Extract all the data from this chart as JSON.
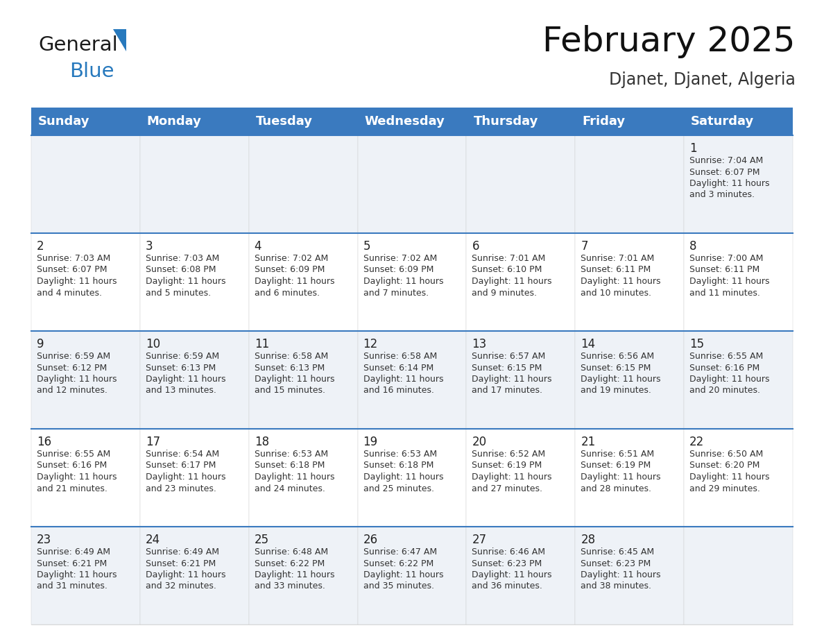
{
  "title": "February 2025",
  "subtitle": "Djanet, Djanet, Algeria",
  "header_color": "#3a7abf",
  "header_text_color": "#ffffff",
  "background_color": "#ffffff",
  "cell_bg_alt": "#eef2f7",
  "cell_bg_normal": "#ffffff",
  "row_divider_color": "#3a7abf",
  "cell_border_color": "#cccccc",
  "day_headers": [
    "Sunday",
    "Monday",
    "Tuesday",
    "Wednesday",
    "Thursday",
    "Friday",
    "Saturday"
  ],
  "title_fontsize": 36,
  "subtitle_fontsize": 17,
  "header_fontsize": 13,
  "day_num_fontsize": 12,
  "cell_fontsize": 9,
  "logo_color1": "#1a1a1a",
  "logo_color2": "#2779bd",
  "logo_triangle_color": "#2779bd",
  "weeks": [
    [
      {
        "day": null,
        "info": ""
      },
      {
        "day": null,
        "info": ""
      },
      {
        "day": null,
        "info": ""
      },
      {
        "day": null,
        "info": ""
      },
      {
        "day": null,
        "info": ""
      },
      {
        "day": null,
        "info": ""
      },
      {
        "day": 1,
        "info": "Sunrise: 7:04 AM\nSunset: 6:07 PM\nDaylight: 11 hours\nand 3 minutes."
      }
    ],
    [
      {
        "day": 2,
        "info": "Sunrise: 7:03 AM\nSunset: 6:07 PM\nDaylight: 11 hours\nand 4 minutes."
      },
      {
        "day": 3,
        "info": "Sunrise: 7:03 AM\nSunset: 6:08 PM\nDaylight: 11 hours\nand 5 minutes."
      },
      {
        "day": 4,
        "info": "Sunrise: 7:02 AM\nSunset: 6:09 PM\nDaylight: 11 hours\nand 6 minutes."
      },
      {
        "day": 5,
        "info": "Sunrise: 7:02 AM\nSunset: 6:09 PM\nDaylight: 11 hours\nand 7 minutes."
      },
      {
        "day": 6,
        "info": "Sunrise: 7:01 AM\nSunset: 6:10 PM\nDaylight: 11 hours\nand 9 minutes."
      },
      {
        "day": 7,
        "info": "Sunrise: 7:01 AM\nSunset: 6:11 PM\nDaylight: 11 hours\nand 10 minutes."
      },
      {
        "day": 8,
        "info": "Sunrise: 7:00 AM\nSunset: 6:11 PM\nDaylight: 11 hours\nand 11 minutes."
      }
    ],
    [
      {
        "day": 9,
        "info": "Sunrise: 6:59 AM\nSunset: 6:12 PM\nDaylight: 11 hours\nand 12 minutes."
      },
      {
        "day": 10,
        "info": "Sunrise: 6:59 AM\nSunset: 6:13 PM\nDaylight: 11 hours\nand 13 minutes."
      },
      {
        "day": 11,
        "info": "Sunrise: 6:58 AM\nSunset: 6:13 PM\nDaylight: 11 hours\nand 15 minutes."
      },
      {
        "day": 12,
        "info": "Sunrise: 6:58 AM\nSunset: 6:14 PM\nDaylight: 11 hours\nand 16 minutes."
      },
      {
        "day": 13,
        "info": "Sunrise: 6:57 AM\nSunset: 6:15 PM\nDaylight: 11 hours\nand 17 minutes."
      },
      {
        "day": 14,
        "info": "Sunrise: 6:56 AM\nSunset: 6:15 PM\nDaylight: 11 hours\nand 19 minutes."
      },
      {
        "day": 15,
        "info": "Sunrise: 6:55 AM\nSunset: 6:16 PM\nDaylight: 11 hours\nand 20 minutes."
      }
    ],
    [
      {
        "day": 16,
        "info": "Sunrise: 6:55 AM\nSunset: 6:16 PM\nDaylight: 11 hours\nand 21 minutes."
      },
      {
        "day": 17,
        "info": "Sunrise: 6:54 AM\nSunset: 6:17 PM\nDaylight: 11 hours\nand 23 minutes."
      },
      {
        "day": 18,
        "info": "Sunrise: 6:53 AM\nSunset: 6:18 PM\nDaylight: 11 hours\nand 24 minutes."
      },
      {
        "day": 19,
        "info": "Sunrise: 6:53 AM\nSunset: 6:18 PM\nDaylight: 11 hours\nand 25 minutes."
      },
      {
        "day": 20,
        "info": "Sunrise: 6:52 AM\nSunset: 6:19 PM\nDaylight: 11 hours\nand 27 minutes."
      },
      {
        "day": 21,
        "info": "Sunrise: 6:51 AM\nSunset: 6:19 PM\nDaylight: 11 hours\nand 28 minutes."
      },
      {
        "day": 22,
        "info": "Sunrise: 6:50 AM\nSunset: 6:20 PM\nDaylight: 11 hours\nand 29 minutes."
      }
    ],
    [
      {
        "day": 23,
        "info": "Sunrise: 6:49 AM\nSunset: 6:21 PM\nDaylight: 11 hours\nand 31 minutes."
      },
      {
        "day": 24,
        "info": "Sunrise: 6:49 AM\nSunset: 6:21 PM\nDaylight: 11 hours\nand 32 minutes."
      },
      {
        "day": 25,
        "info": "Sunrise: 6:48 AM\nSunset: 6:22 PM\nDaylight: 11 hours\nand 33 minutes."
      },
      {
        "day": 26,
        "info": "Sunrise: 6:47 AM\nSunset: 6:22 PM\nDaylight: 11 hours\nand 35 minutes."
      },
      {
        "day": 27,
        "info": "Sunrise: 6:46 AM\nSunset: 6:23 PM\nDaylight: 11 hours\nand 36 minutes."
      },
      {
        "day": 28,
        "info": "Sunrise: 6:45 AM\nSunset: 6:23 PM\nDaylight: 11 hours\nand 38 minutes."
      },
      {
        "day": null,
        "info": ""
      }
    ]
  ]
}
